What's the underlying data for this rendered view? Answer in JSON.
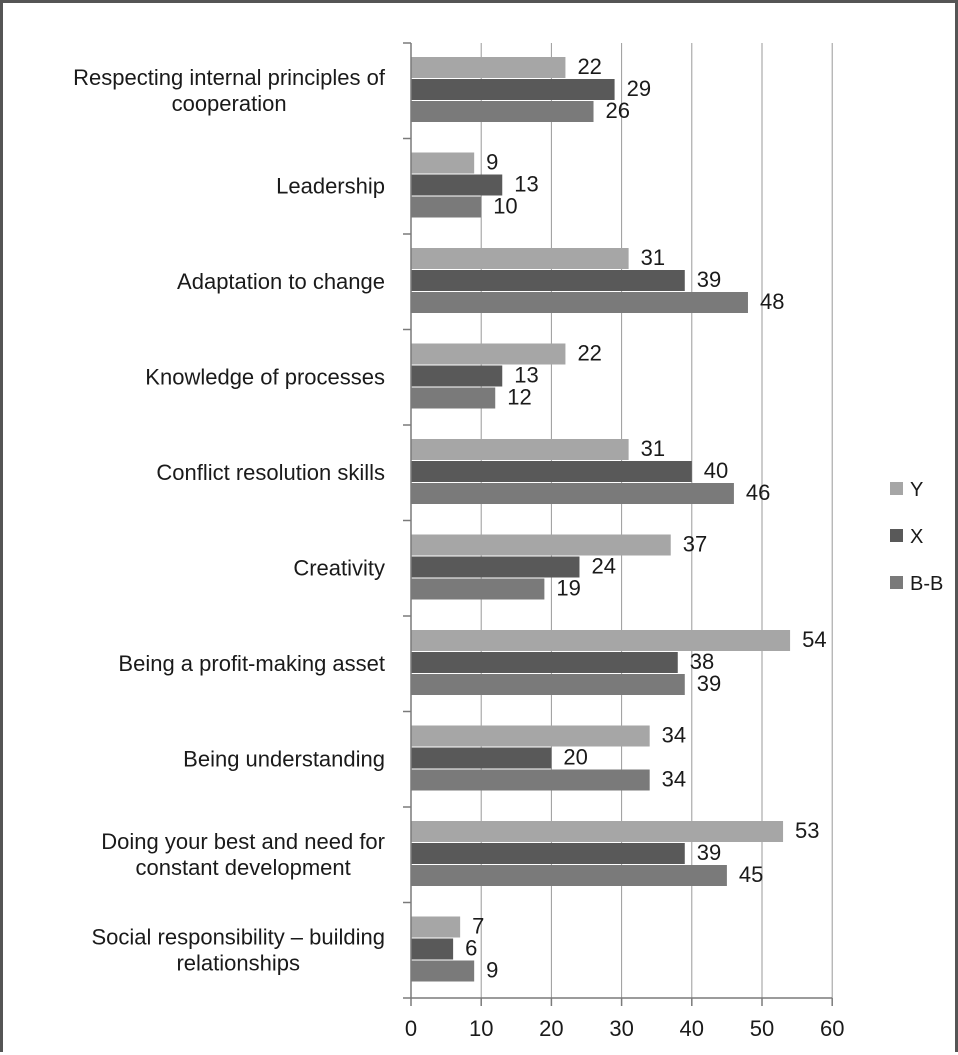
{
  "chart_data": {
    "type": "bar",
    "orientation": "horizontal",
    "categories": [
      [
        "Respecting internal principles of",
        "cooperation"
      ],
      [
        "Leadership"
      ],
      [
        "Adaptation to change"
      ],
      [
        "Knowledge of processes"
      ],
      [
        "Conflict resolution skills"
      ],
      [
        "Creativity"
      ],
      [
        "Being a profit-making asset"
      ],
      [
        "Being understanding"
      ],
      [
        "Doing your best and need for",
        "constant development"
      ],
      [
        "Social responsibility – building",
        "relationships"
      ]
    ],
    "series": [
      {
        "name": "Y",
        "color": "#a6a6a6",
        "values": [
          22,
          9,
          31,
          22,
          31,
          37,
          54,
          34,
          53,
          7
        ]
      },
      {
        "name": "X",
        "color": "#595959",
        "values": [
          29,
          13,
          39,
          13,
          40,
          24,
          38,
          20,
          39,
          6
        ]
      },
      {
        "name": "B-B",
        "color": "#7a7a7a",
        "values": [
          26,
          10,
          48,
          12,
          46,
          19,
          39,
          34,
          45,
          9
        ]
      }
    ],
    "xlim": [
      0,
      60
    ],
    "xticks": [
      0,
      10,
      20,
      30,
      40,
      50,
      60
    ],
    "grid": "vertical",
    "legend": "right",
    "title": "",
    "xlabel": "",
    "ylabel": ""
  }
}
